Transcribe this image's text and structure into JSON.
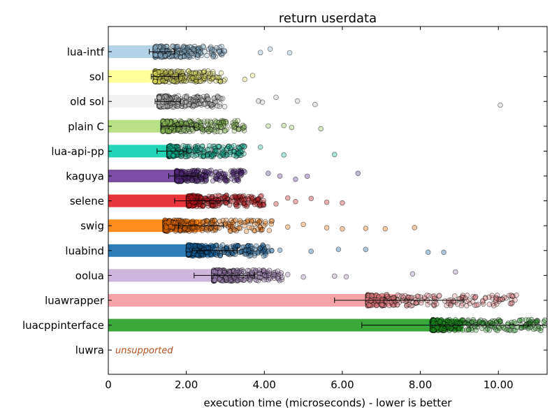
{
  "chart_data": {
    "type": "bar",
    "title": "return userdata",
    "xlabel": "execution time (microseconds) - lower is better",
    "ylabel": "",
    "xlim": [
      0,
      11.25
    ],
    "xticks": [
      0,
      2,
      4,
      6,
      8,
      10
    ],
    "xtick_labels": [
      "0",
      "2.00",
      "4.00",
      "6.00",
      "8.00",
      "10.00"
    ],
    "grid": false,
    "orientation": "horizontal",
    "scatter_overlay": true,
    "categories": [
      "lua-intf",
      "sol",
      "old sol",
      "plain C",
      "lua-api-pp",
      "kaguya",
      "selene",
      "swig",
      "luabind",
      "oolua",
      "luawrapper",
      "luacppinterface",
      "luwra"
    ],
    "values": [
      1.38,
      1.45,
      1.5,
      1.8,
      1.6,
      1.95,
      2.4,
      2.4,
      2.75,
      3.0,
      7.4,
      9.1,
      null
    ],
    "error_low": [
      1.05,
      1.1,
      1.2,
      1.35,
      1.25,
      1.55,
      1.7,
      1.8,
      2.15,
      2.2,
      5.8,
      6.5,
      null
    ],
    "error_high": [
      1.7,
      1.8,
      1.85,
      2.2,
      2.0,
      2.3,
      3.1,
      2.95,
      3.3,
      3.75,
      9.1,
      11.25,
      null
    ],
    "point_min": [
      1.2,
      1.2,
      1.3,
      1.4,
      1.55,
      1.75,
      2.05,
      1.45,
      2.05,
      2.7,
      6.65,
      8.3,
      null
    ],
    "point_typical_max": [
      3.0,
      3.0,
      3.0,
      3.5,
      3.5,
      3.5,
      4.0,
      4.2,
      4.2,
      4.5,
      10.5,
      11.25,
      null
    ],
    "outliers": [
      [
        3.9,
        4.15,
        4.65
      ],
      [
        3.5,
        3.7
      ],
      [
        3.85,
        3.95,
        4.3,
        4.85,
        5.3,
        10.05
      ],
      [
        4.1,
        4.5,
        4.7,
        5.45
      ],
      [
        3.9,
        4.5,
        5.8
      ],
      [
        4.1,
        4.4,
        4.8,
        5.1,
        6.4
      ],
      [
        4.3,
        4.6,
        4.8,
        5.2,
        5.6,
        6.0
      ],
      [
        4.6,
        5.0,
        5.6,
        6.0,
        6.6,
        7.1,
        7.85
      ],
      [
        4.4,
        5.2,
        5.9,
        6.6,
        8.2,
        8.6
      ],
      [
        4.6,
        5.0,
        5.8,
        6.1,
        7.8,
        8.9
      ],
      [],
      [],
      []
    ],
    "colors": [
      "#b3d4e8",
      "#ffff99",
      "#f2f2f2",
      "#b8e186",
      "#23d5b6",
      "#7b4fa6",
      "#e8343b",
      "#ff8e1f",
      "#2e7db8",
      "#cdb5dc",
      "#f8a3a7",
      "#3aa83a",
      "#ffffff"
    ],
    "point_colors": [
      "#8ab3cc",
      "#d9d95a",
      "#bdbdbd",
      "#8fc05a",
      "#0fb496",
      "#5a2e86",
      "#c4161d",
      "#e86a00",
      "#15609a",
      "#9c7fb0",
      "#e07a80",
      "#1f8a1f",
      "#ffffff"
    ],
    "annotations": [
      {
        "category": "luwra",
        "text": "unsupported",
        "color": "#b5501f"
      }
    ]
  }
}
